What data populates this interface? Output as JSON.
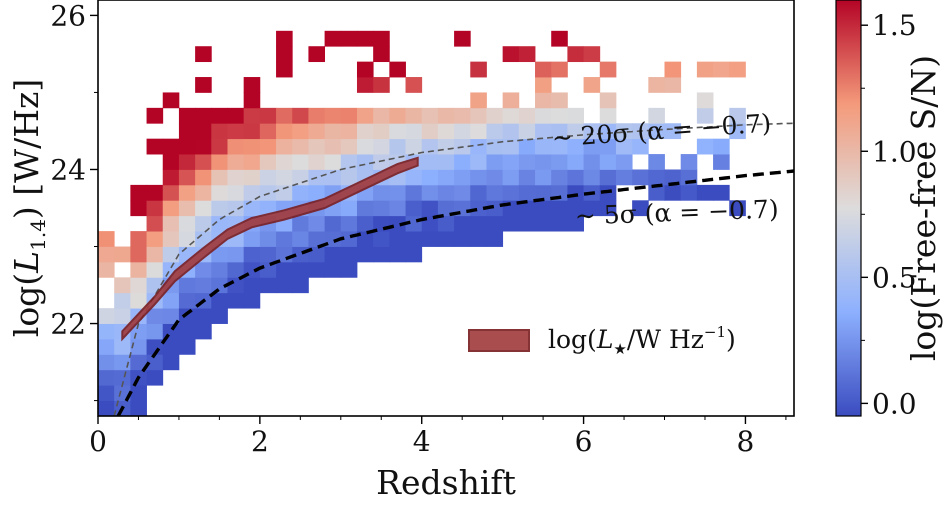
{
  "chart_data": {
    "type": "heatmap",
    "xlabel": "Redshift",
    "ylabel": "log(L1.4) [W/Hz]",
    "ylabel_parts": {
      "prefix": "log(",
      "var": "L",
      "sub": "1.4",
      "suffix": ") [W/Hz]"
    },
    "xlim": [
      0,
      8.6
    ],
    "ylim": [
      20.8,
      26.2
    ],
    "x_ticks": [
      0,
      2,
      4,
      6,
      8
    ],
    "y_ticks": [
      22,
      24,
      26
    ],
    "x_tick_labels": [
      "0",
      "2",
      "4",
      "6",
      "8"
    ],
    "y_tick_labels": [
      "22",
      "24",
      "26"
    ],
    "grid": false,
    "legend_placement": "lower-right",
    "colorbar": {
      "label": "log(Free-free S/N)",
      "colormap": "coolwarm",
      "range": [
        -0.05,
        1.6
      ],
      "ticks": [
        0.0,
        0.5,
        1.0,
        1.5
      ],
      "tick_labels": [
        "0.0",
        "0.5",
        "1.0",
        "1.5"
      ]
    },
    "bin_size": {
      "dx": 0.2,
      "dy": 0.2
    },
    "heatmap_description": "2D binned log(Free-free S/N); high S/N (red) at upper-left / high luminosity, low S/N (blue) along lower detection boundary",
    "curves": [
      {
        "name": "~20σ (α = -0.7)",
        "style": "thin dashed gray",
        "x": [
          0.2,
          0.5,
          1.0,
          1.5,
          2.0,
          3.0,
          4.0,
          5.0,
          6.0,
          7.0,
          8.0,
          8.6
        ],
        "y": [
          20.8,
          22.0,
          22.9,
          23.35,
          23.65,
          24.0,
          24.22,
          24.36,
          24.45,
          24.52,
          24.58,
          24.6
        ]
      },
      {
        "name": "~5σ (α = -0.7)",
        "style": "thick dashed black",
        "x": [
          0.25,
          0.5,
          1.0,
          1.5,
          2.0,
          3.0,
          4.0,
          5.0,
          6.0,
          7.0,
          8.0,
          8.6
        ],
        "y": [
          20.8,
          21.3,
          22.05,
          22.45,
          22.72,
          23.1,
          23.35,
          23.54,
          23.68,
          23.8,
          23.92,
          23.98
        ]
      }
    ],
    "band": {
      "name": "log(L★/W Hz⁻¹)",
      "x": [
        0.3,
        0.7,
        0.95,
        1.3,
        1.6,
        1.9,
        2.3,
        2.8,
        3.3,
        3.7,
        3.95
      ],
      "lo": [
        21.8,
        22.25,
        22.55,
        22.85,
        23.1,
        23.25,
        23.35,
        23.5,
        23.75,
        23.95,
        24.05
      ],
      "hi": [
        21.9,
        22.35,
        22.68,
        22.98,
        23.22,
        23.37,
        23.47,
        23.62,
        23.87,
        24.07,
        24.15
      ]
    },
    "annotations": [
      {
        "text": "~20σ (α = −0.7)",
        "display": "∼ 20σ (α = −0.7)"
      },
      {
        "text": "~5σ (α = −0.7)",
        "display": "∼ 5σ (α = −0.7)"
      }
    ],
    "legend": {
      "label": "log(L★/W Hz⁻¹)",
      "prefix": "log(",
      "var": "L",
      "star": "★",
      "unit": "/W Hz",
      "exp": "−1",
      "suffix": ")"
    }
  }
}
